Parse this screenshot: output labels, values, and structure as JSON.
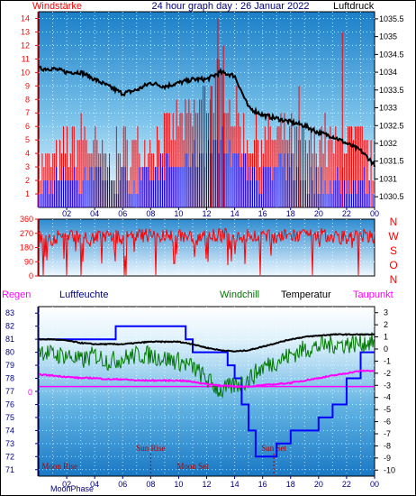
{
  "colors": {
    "red": "#ff0000",
    "blue": "#0000ff",
    "navy": "#000080",
    "green": "#007700",
    "magenta": "#ff00ff",
    "black": "#000000",
    "darkred": "#aa0000"
  },
  "chart_data": [
    {
      "type": "bar",
      "title": "24 hour graph day : 26 Januar 2022",
      "left_label": "Windstärke",
      "right_label": "Luftdruck",
      "x_ticks": [
        "02",
        "04",
        "06",
        "08",
        "10",
        "12",
        "14",
        "16",
        "18",
        "20",
        "22",
        "00"
      ],
      "left_ticks": [
        "1",
        "2",
        "3",
        "4",
        "5",
        "6",
        "7",
        "8",
        "9",
        "10",
        "11",
        "12",
        "13",
        "14"
      ],
      "right_ticks": [
        "1030.5",
        "1031",
        "1031.5",
        "1032",
        "1032.5",
        "1033",
        "1033.5",
        "1034",
        "1034.5",
        "1035",
        "1035.5"
      ],
      "left_ylim": [
        0,
        14.5
      ],
      "right_ylim": [
        1030.2,
        1035.7
      ],
      "series": [
        {
          "name": "Windstärke",
          "color": "#ff0000",
          "hours": [
            0,
            1,
            2,
            3,
            4,
            5,
            6,
            7,
            8,
            9,
            10,
            11,
            12,
            13,
            14,
            15,
            16,
            17,
            18,
            19,
            20,
            21,
            22,
            23,
            24
          ],
          "gust": [
            3,
            3,
            4,
            5,
            4,
            3,
            4,
            4,
            5,
            5,
            6,
            6,
            8,
            9,
            7,
            5,
            5,
            5,
            5,
            4,
            5,
            4,
            5,
            4,
            3
          ],
          "mean": [
            1,
            2,
            2,
            2,
            3,
            2,
            2,
            2,
            2,
            3,
            3,
            4,
            4,
            5,
            4,
            3,
            2,
            3,
            3,
            2,
            2,
            2,
            2,
            2,
            1
          ]
        },
        {
          "name": "Luftdruck",
          "color": "#000000",
          "hours": [
            0,
            1,
            2,
            3,
            4,
            5,
            6,
            7,
            8,
            9,
            10,
            11,
            12,
            13,
            14,
            15,
            16,
            17,
            18,
            19,
            20,
            21,
            22,
            23,
            24
          ],
          "values": [
            1034.1,
            1034.1,
            1034.0,
            1034.0,
            1033.8,
            1033.6,
            1033.4,
            1033.5,
            1033.7,
            1033.6,
            1033.7,
            1033.8,
            1033.8,
            1034.0,
            1033.9,
            1033.0,
            1032.8,
            1032.7,
            1032.6,
            1032.5,
            1032.3,
            1032.2,
            1032.0,
            1031.8,
            1031.4
          ]
        }
      ]
    },
    {
      "type": "line",
      "left_ticks": [
        "0",
        "90",
        "180",
        "270",
        "360"
      ],
      "right_letters": [
        "N",
        "W",
        "S",
        "O",
        "N"
      ],
      "ylim": [
        0,
        360
      ],
      "series": [
        {
          "name": "Windrichtung",
          "color": "#ff0000",
          "hours": [
            0,
            1,
            2,
            3,
            4,
            5,
            6,
            7,
            8,
            9,
            10,
            11,
            12,
            13,
            14,
            15,
            16,
            17,
            18,
            19,
            20,
            21,
            22,
            23,
            24
          ],
          "values": [
            250,
            240,
            260,
            250,
            245,
            255,
            240,
            250,
            260,
            250,
            255,
            245,
            250,
            260,
            250,
            255,
            250,
            245,
            255,
            250,
            260,
            250,
            245,
            255,
            250
          ]
        }
      ]
    },
    {
      "type": "line",
      "header": {
        "regen": "Regen",
        "luftfeuchte": "Luftfeuchte",
        "windchill": "Windchill",
        "temperatur": "Temperatur",
        "taupunkt": "Taupunkt"
      },
      "x_ticks": [
        "02",
        "04",
        "06",
        "08",
        "10",
        "12",
        "14",
        "16",
        "18",
        "20",
        "22",
        "00"
      ],
      "left_ticks": [
        "71",
        "72",
        "73",
        "74",
        "75",
        "76",
        "77",
        "78",
        "79",
        "80",
        "81",
        "82",
        "83"
      ],
      "right_ticks": [
        "-10",
        "-9",
        "-8",
        "-7",
        "-6",
        "-5",
        "-4",
        "-3",
        "-2",
        "-1",
        "0",
        "1",
        "2",
        "3"
      ],
      "rain_zero": "0",
      "left_ylim": [
        70.5,
        83.5
      ],
      "right_ylim": [
        -10.5,
        3.5
      ],
      "events": [
        {
          "label": "Moon Rise",
          "hour": 1.5,
          "row": "low"
        },
        {
          "label": "Sun Rise",
          "hour": 8.0,
          "row": "high"
        },
        {
          "label": "Moon Set",
          "hour": 11.0,
          "row": "low"
        },
        {
          "label": "Sun Set",
          "hour": 16.8,
          "row": "high"
        }
      ],
      "moonphase_label": "MoonPhase",
      "series": [
        {
          "name": "Luftfeuchte",
          "color": "#0000ff",
          "hours": [
            0,
            1,
            2,
            3,
            4,
            5,
            5.5,
            6,
            7,
            8,
            9,
            10,
            10.5,
            11,
            12,
            13,
            13.5,
            14,
            14.5,
            15,
            15.5,
            16,
            17,
            18,
            19,
            20,
            21,
            22,
            23,
            24
          ],
          "values": [
            81,
            81,
            81,
            81,
            81,
            81,
            82,
            82,
            82,
            82,
            82,
            82,
            81,
            80,
            80,
            80,
            79,
            78,
            76,
            74,
            72,
            72,
            73,
            74,
            74,
            75,
            76,
            78,
            80,
            80
          ]
        },
        {
          "name": "Temperatur",
          "color": "#000000",
          "hours": [
            0,
            1,
            2,
            3,
            4,
            5,
            6,
            7,
            8,
            9,
            10,
            11,
            12,
            13,
            14,
            15,
            16,
            17,
            18,
            19,
            20,
            21,
            22,
            23,
            24
          ],
          "values": [
            0.8,
            0.8,
            0.7,
            0.5,
            0.4,
            0.4,
            0.4,
            0.5,
            0.6,
            0.6,
            0.6,
            0.4,
            0.1,
            -0.1,
            -0.2,
            -0.1,
            0.2,
            0.5,
            0.8,
            1.0,
            1.1,
            1.2,
            1.2,
            1.2,
            1.2
          ]
        },
        {
          "name": "Windchill",
          "color": "#007700",
          "hours": [
            0,
            1,
            2,
            3,
            4,
            5,
            6,
            7,
            8,
            9,
            10,
            11,
            12,
            13,
            14,
            15,
            16,
            17,
            18,
            19,
            20,
            21,
            22,
            23,
            24
          ],
          "values": [
            0.0,
            -0.5,
            -0.5,
            -1.0,
            -0.5,
            -1.0,
            -0.8,
            -0.5,
            -0.5,
            -0.8,
            -1.0,
            -1.5,
            -2.5,
            -3.5,
            -3.0,
            -2.5,
            -1.5,
            -1.0,
            -0.5,
            0.0,
            0.2,
            0.4,
            0.4,
            0.5,
            0.6
          ]
        },
        {
          "name": "Taupunkt",
          "color": "#ff00ff",
          "hours": [
            0,
            1,
            2,
            3,
            4,
            5,
            6,
            7,
            8,
            9,
            10,
            11,
            12,
            13,
            14,
            15,
            16,
            17,
            18,
            19,
            20,
            21,
            22,
            23,
            24
          ],
          "values": [
            -2.1,
            -2.2,
            -2.3,
            -2.4,
            -2.4,
            -2.5,
            -2.5,
            -2.6,
            -2.6,
            -2.6,
            -2.6,
            -2.7,
            -2.9,
            -3.0,
            -3.1,
            -3.1,
            -3.0,
            -2.9,
            -2.8,
            -2.6,
            -2.4,
            -2.2,
            -2.0,
            -1.8,
            -1.8
          ]
        },
        {
          "name": "Regen",
          "color": "#ff00ff",
          "values": [
            0
          ]
        }
      ]
    }
  ]
}
